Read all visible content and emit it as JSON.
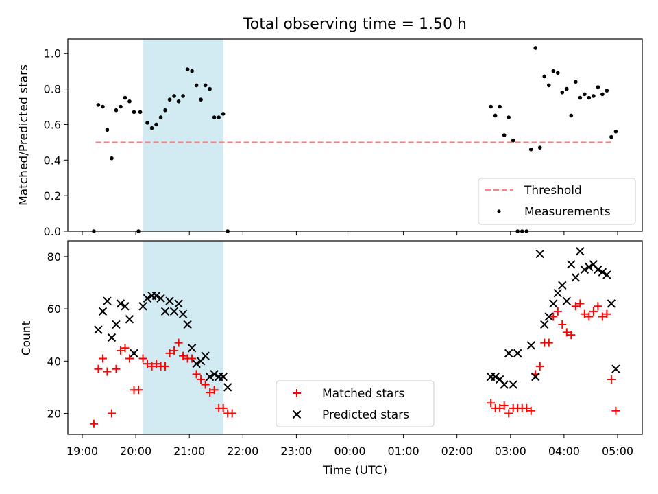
{
  "title": "Total observing time = 1.50 h",
  "colors": {
    "band": "#add8e6",
    "threshold": "#ff8080",
    "matched": "#ff0000",
    "predicted": "#000000",
    "measurement": "#000000"
  },
  "chart_data": [
    {
      "type": "scatter",
      "ylabel": "Matched/Predicted stars",
      "ylim": [
        0,
        1.08
      ],
      "yticks": [
        0.0,
        0.2,
        0.4,
        0.6,
        0.8,
        1.0
      ],
      "ytick_labels": [
        "0.0",
        "0.2",
        "0.4",
        "0.6",
        "0.8",
        "1.0"
      ],
      "legend": {
        "placement": "lower-right",
        "threshold_label": "Threshold",
        "measurements_label": "Measurements"
      },
      "shaded_interval": [
        "20:08",
        "21:38"
      ],
      "threshold": {
        "value": 0.5,
        "x_start": "19:15",
        "x_end": "04:55"
      },
      "series": [
        {
          "name": "Measurements",
          "marker": "dot",
          "points": [
            [
              "19:13",
              0.0
            ],
            [
              "19:18",
              0.71
            ],
            [
              "19:23",
              0.7
            ],
            [
              "19:28",
              0.57
            ],
            [
              "19:33",
              0.41
            ],
            [
              "19:38",
              0.68
            ],
            [
              "19:43",
              0.7
            ],
            [
              "19:48",
              0.75
            ],
            [
              "19:53",
              0.73
            ],
            [
              "19:58",
              0.67
            ],
            [
              "20:03",
              0.0
            ],
            [
              "20:05",
              0.67
            ],
            [
              "20:13",
              0.61
            ],
            [
              "20:18",
              0.58
            ],
            [
              "20:23",
              0.6
            ],
            [
              "20:28",
              0.64
            ],
            [
              "20:33",
              0.68
            ],
            [
              "20:38",
              0.74
            ],
            [
              "20:43",
              0.76
            ],
            [
              "20:48",
              0.73
            ],
            [
              "20:53",
              0.76
            ],
            [
              "20:58",
              0.91
            ],
            [
              "21:03",
              0.9
            ],
            [
              "21:08",
              0.82
            ],
            [
              "21:13",
              0.74
            ],
            [
              "21:18",
              0.82
            ],
            [
              "21:23",
              0.8
            ],
            [
              "21:28",
              0.64
            ],
            [
              "21:33",
              0.64
            ],
            [
              "21:38",
              0.66
            ],
            [
              "21:43",
              0.0
            ],
            [
              "02:38",
              0.7
            ],
            [
              "02:43",
              0.65
            ],
            [
              "02:48",
              0.7
            ],
            [
              "02:53",
              0.54
            ],
            [
              "02:58",
              0.64
            ],
            [
              "03:03",
              0.51
            ],
            [
              "03:08",
              0.0
            ],
            [
              "03:13",
              0.0
            ],
            [
              "03:18",
              0.0
            ],
            [
              "03:23",
              0.46
            ],
            [
              "03:28",
              1.03
            ],
            [
              "03:33",
              0.47
            ],
            [
              "03:38",
              0.87
            ],
            [
              "03:43",
              0.82
            ],
            [
              "03:48",
              0.9
            ],
            [
              "03:53",
              0.89
            ],
            [
              "03:58",
              0.78
            ],
            [
              "04:03",
              0.8
            ],
            [
              "04:08",
              0.65
            ],
            [
              "04:13",
              0.84
            ],
            [
              "04:18",
              0.75
            ],
            [
              "04:23",
              0.77
            ],
            [
              "04:28",
              0.75
            ],
            [
              "04:33",
              0.76
            ],
            [
              "04:38",
              0.81
            ],
            [
              "04:43",
              0.77
            ],
            [
              "04:48",
              0.79
            ],
            [
              "04:53",
              0.53
            ],
            [
              "04:58",
              0.56
            ]
          ]
        }
      ]
    },
    {
      "type": "scatter",
      "ylabel": "Count",
      "xlabel": "Time (UTC)",
      "ylim": [
        12,
        86
      ],
      "yticks": [
        20,
        40,
        60,
        80
      ],
      "ytick_labels": [
        "20",
        "40",
        "60",
        "80"
      ],
      "xticks": [
        "19:00",
        "20:00",
        "21:00",
        "22:00",
        "23:00",
        "00:00",
        "01:00",
        "02:00",
        "03:00",
        "04:00",
        "05:00"
      ],
      "legend": {
        "placement": "lower-center",
        "matched_label": "Matched stars",
        "predicted_label": "Predicted stars"
      },
      "shaded_interval": [
        "20:08",
        "21:38"
      ],
      "series": [
        {
          "name": "Matched stars",
          "marker": "plus",
          "points": [
            [
              "19:13",
              16
            ],
            [
              "19:18",
              37
            ],
            [
              "19:23",
              41
            ],
            [
              "19:28",
              36
            ],
            [
              "19:33",
              20
            ],
            [
              "19:38",
              37
            ],
            [
              "19:43",
              44
            ],
            [
              "19:48",
              45
            ],
            [
              "19:53",
              41
            ],
            [
              "19:58",
              29
            ],
            [
              "20:03",
              29
            ],
            [
              "20:08",
              41
            ],
            [
              "20:13",
              39
            ],
            [
              "20:18",
              38
            ],
            [
              "20:23",
              39
            ],
            [
              "20:28",
              38
            ],
            [
              "20:33",
              38
            ],
            [
              "20:38",
              43
            ],
            [
              "20:43",
              44
            ],
            [
              "20:48",
              47
            ],
            [
              "20:53",
              42
            ],
            [
              "20:58",
              41
            ],
            [
              "21:03",
              41
            ],
            [
              "21:08",
              35
            ],
            [
              "21:13",
              33
            ],
            [
              "21:18",
              31
            ],
            [
              "21:23",
              28
            ],
            [
              "21:28",
              29
            ],
            [
              "21:33",
              22
            ],
            [
              "21:38",
              22
            ],
            [
              "21:43",
              20
            ],
            [
              "21:48",
              20
            ],
            [
              "02:38",
              24
            ],
            [
              "02:43",
              22
            ],
            [
              "02:48",
              22
            ],
            [
              "02:53",
              23
            ],
            [
              "02:58",
              20
            ],
            [
              "03:03",
              22
            ],
            [
              "03:08",
              22
            ],
            [
              "03:13",
              22
            ],
            [
              "03:18",
              22
            ],
            [
              "03:23",
              21
            ],
            [
              "03:28",
              35
            ],
            [
              "03:33",
              38
            ],
            [
              "03:38",
              47
            ],
            [
              "03:43",
              47
            ],
            [
              "03:48",
              57
            ],
            [
              "03:53",
              59
            ],
            [
              "03:58",
              54
            ],
            [
              "04:03",
              51
            ],
            [
              "04:08",
              50
            ],
            [
              "04:13",
              61
            ],
            [
              "04:18",
              62
            ],
            [
              "04:23",
              58
            ],
            [
              "04:28",
              57
            ],
            [
              "04:33",
              59
            ],
            [
              "04:38",
              61
            ],
            [
              "04:43",
              57
            ],
            [
              "04:48",
              58
            ],
            [
              "04:53",
              33
            ],
            [
              "04:58",
              21
            ]
          ]
        },
        {
          "name": "Predicted stars",
          "marker": "x",
          "points": [
            [
              "19:18",
              52
            ],
            [
              "19:23",
              59
            ],
            [
              "19:28",
              63
            ],
            [
              "19:33",
              49
            ],
            [
              "19:38",
              54
            ],
            [
              "19:43",
              62
            ],
            [
              "19:48",
              61
            ],
            [
              "19:53",
              56
            ],
            [
              "19:58",
              43
            ],
            [
              "20:08",
              61
            ],
            [
              "20:13",
              64
            ],
            [
              "20:18",
              65
            ],
            [
              "20:23",
              65
            ],
            [
              "20:28",
              64
            ],
            [
              "20:33",
              59
            ],
            [
              "20:38",
              63
            ],
            [
              "20:43",
              59
            ],
            [
              "20:48",
              62
            ],
            [
              "20:53",
              58
            ],
            [
              "20:58",
              54
            ],
            [
              "21:03",
              45
            ],
            [
              "21:08",
              39
            ],
            [
              "21:13",
              40
            ],
            [
              "21:18",
              42
            ],
            [
              "21:23",
              34
            ],
            [
              "21:28",
              35
            ],
            [
              "21:33",
              34
            ],
            [
              "21:38",
              34
            ],
            [
              "21:43",
              30
            ],
            [
              "02:38",
              34
            ],
            [
              "02:43",
              34
            ],
            [
              "02:48",
              33
            ],
            [
              "02:53",
              31
            ],
            [
              "02:58",
              43
            ],
            [
              "03:03",
              31
            ],
            [
              "03:08",
              43
            ],
            [
              "03:23",
              46
            ],
            [
              "03:28",
              34
            ],
            [
              "03:33",
              81
            ],
            [
              "03:38",
              54
            ],
            [
              "03:43",
              57
            ],
            [
              "03:48",
              62
            ],
            [
              "03:53",
              66
            ],
            [
              "03:58",
              69
            ],
            [
              "04:03",
              63
            ],
            [
              "04:08",
              77
            ],
            [
              "04:13",
              72
            ],
            [
              "04:18",
              82
            ],
            [
              "04:23",
              75
            ],
            [
              "04:28",
              76
            ],
            [
              "04:33",
              77
            ],
            [
              "04:38",
              75
            ],
            [
              "04:43",
              74
            ],
            [
              "04:48",
              73
            ],
            [
              "04:53",
              62
            ],
            [
              "04:58",
              37
            ]
          ]
        }
      ]
    }
  ]
}
